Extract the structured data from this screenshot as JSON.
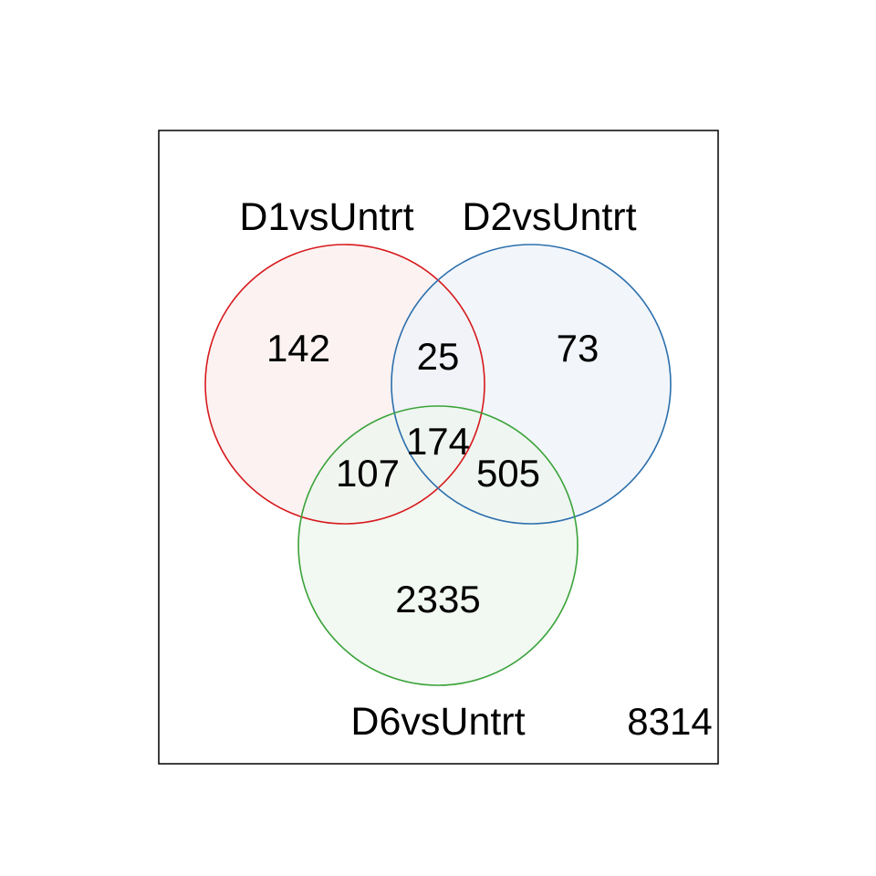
{
  "sets": [
    {
      "id": "d1",
      "label": "D1vsUntrt",
      "stroke": "#d7191c",
      "fill": "#fbeeee"
    },
    {
      "id": "d2",
      "label": "D2vsUntrt",
      "stroke": "#2c6fac",
      "fill": "#eef3fa"
    },
    {
      "id": "d6",
      "label": "D6vsUntrt",
      "stroke": "#3aa33a",
      "fill": "#eef6ee"
    }
  ],
  "regions": {
    "d1_only": "142",
    "d2_only": "73",
    "d6_only": "2335",
    "d1_d2": "25",
    "d1_d6": "107",
    "d2_d6": "505",
    "d1_d2_d6": "174"
  },
  "outside": "8314",
  "frame_color": "#000000"
}
